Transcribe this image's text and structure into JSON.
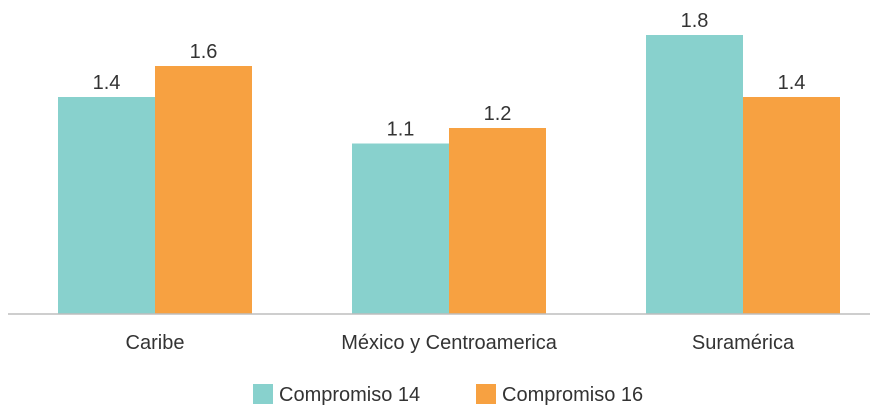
{
  "chart_data": {
    "type": "bar",
    "categories": [
      "Caribe",
      "México y Centroamerica",
      "Suramérica"
    ],
    "series": [
      {
        "name": "Compromiso 14",
        "values": [
          1.4,
          1.1,
          1.8
        ],
        "color": "#88D1CD"
      },
      {
        "name": "Compromiso 16",
        "values": [
          1.6,
          1.2,
          1.4
        ],
        "color": "#F7A141"
      }
    ],
    "value_labels": [
      [
        "1.4",
        "1.1",
        "1.8"
      ],
      [
        "1.6",
        "1.2",
        "1.4"
      ]
    ],
    "ylim": [
      0,
      1.9
    ],
    "grid": false,
    "legend": "bottom-center"
  }
}
